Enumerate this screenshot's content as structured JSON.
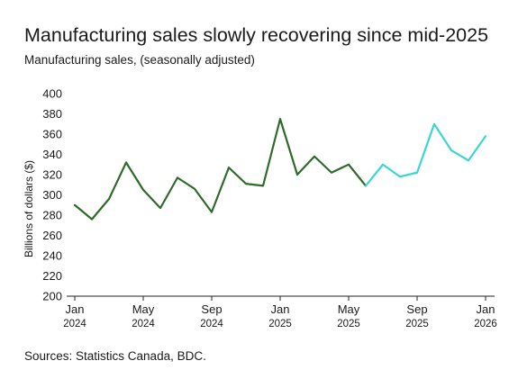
{
  "chart_data": {
    "type": "line",
    "title": "Manufacturing sales slowly recovering since mid-2025",
    "subtitle": "Manufacturing sales, (seasonally adjusted)",
    "xlabel": "",
    "ylabel": "Billions of dollars ($)",
    "ylim": [
      200,
      400
    ],
    "yticks": [
      200,
      220,
      240,
      260,
      280,
      300,
      320,
      340,
      360,
      380,
      400
    ],
    "xticks": [
      {
        "month": "Jan",
        "year": "2024",
        "index": 0
      },
      {
        "month": "May",
        "year": "2024",
        "index": 4
      },
      {
        "month": "Sep",
        "year": "2024",
        "index": 8
      },
      {
        "month": "Jan",
        "year": "2025",
        "index": 12
      },
      {
        "month": "May",
        "year": "2025",
        "index": 16
      },
      {
        "month": "Sep",
        "year": "2025",
        "index": 20
      },
      {
        "month": "Jan",
        "year": "2026",
        "index": 24
      }
    ],
    "x": [
      "2024-01",
      "2024-02",
      "2024-03",
      "2024-04",
      "2024-05",
      "2024-06",
      "2024-07",
      "2024-08",
      "2024-09",
      "2024-10",
      "2024-11",
      "2024-12",
      "2025-01",
      "2025-02",
      "2025-03",
      "2025-04",
      "2025-05",
      "2025-06",
      "2025-07",
      "2025-08",
      "2025-09",
      "2025-10",
      "2025-11",
      "2025-12",
      "2026-01"
    ],
    "series": [
      {
        "color": "#2e6b2a",
        "x": [
          "2024-01",
          "2024-02",
          "2024-03",
          "2024-04",
          "2024-05",
          "2024-06",
          "2024-07",
          "2024-08",
          "2024-09",
          "2024-10",
          "2024-11",
          "2024-12",
          "2025-01",
          "2025-02",
          "2025-03",
          "2025-04",
          "2025-05",
          "2025-06"
        ],
        "values": [
          290,
          276,
          296,
          332,
          305,
          287,
          317,
          306,
          283,
          327,
          311,
          309,
          375,
          320,
          338,
          322,
          330,
          309
        ]
      },
      {
        "color": "#3ad6d3",
        "x": [
          "2025-06",
          "2025-07",
          "2025-08",
          "2025-09",
          "2025-10",
          "2025-11",
          "2025-12",
          "2026-01"
        ],
        "values": [
          309,
          330,
          318,
          322,
          370,
          344,
          334,
          358
        ]
      }
    ],
    "grid": false,
    "legend": "none"
  },
  "source": "Sources: Statistics Canada, BDC."
}
